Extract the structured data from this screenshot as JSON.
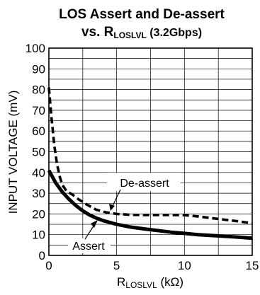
{
  "chart_data": {
    "type": "line",
    "title_line1": "LOS Assert and De-assert",
    "title_line2": {
      "prefix": "vs. R",
      "sub": "LOSLVL",
      "suffix": " (3.2Gbps)"
    },
    "xlabel": {
      "prefix": "R",
      "sub": "LOSLVL",
      "suffix": " (kΩ)"
    },
    "ylabel": "INPUT VOLTAGE (mV)",
    "xlim": [
      0,
      15
    ],
    "ylim": [
      0,
      100
    ],
    "x_ticks": [
      "0",
      "5",
      "10",
      "15"
    ],
    "y_ticks": [
      "0",
      "10",
      "20",
      "30",
      "40",
      "50",
      "60",
      "70",
      "80",
      "90",
      "100"
    ],
    "grid": true,
    "series": [
      {
        "name": "De-assert",
        "style": "dashed",
        "x": [
          0,
          0.2,
          0.4,
          0.6,
          0.8,
          1.0,
          1.3,
          1.7,
          2.2,
          2.8,
          3.5,
          4.2,
          5.0,
          6.0,
          7.0,
          8.0,
          9.0,
          10.0,
          11.0,
          12.0,
          13.0,
          14.0,
          15.0
        ],
        "values": [
          81,
          66,
          53,
          44,
          38,
          34,
          31,
          29.5,
          27,
          24.5,
          22,
          20.8,
          20,
          19.6,
          19.5,
          19.5,
          19.5,
          19.4,
          18.8,
          18,
          17.2,
          16.4,
          15.5
        ]
      },
      {
        "name": "Assert",
        "style": "solid",
        "x": [
          0,
          0.5,
          1.0,
          1.5,
          2.0,
          2.5,
          3.0,
          3.5,
          4.0,
          5.0,
          6.0,
          7.0,
          8.0,
          9.0,
          10.0,
          11.0,
          12.0,
          13.0,
          14.0,
          15.0
        ],
        "values": [
          41,
          35,
          30.5,
          27,
          24,
          21.5,
          19.5,
          18,
          16.8,
          15,
          13.7,
          12.8,
          12,
          11.2,
          10.6,
          10,
          9.6,
          9.2,
          8.8,
          8.3
        ]
      }
    ],
    "annotations": [
      {
        "text": "De-assert",
        "x": 10.0,
        "y": 19.4
      },
      {
        "text": "Assert",
        "x": 5.0,
        "y": 15
      }
    ]
  }
}
